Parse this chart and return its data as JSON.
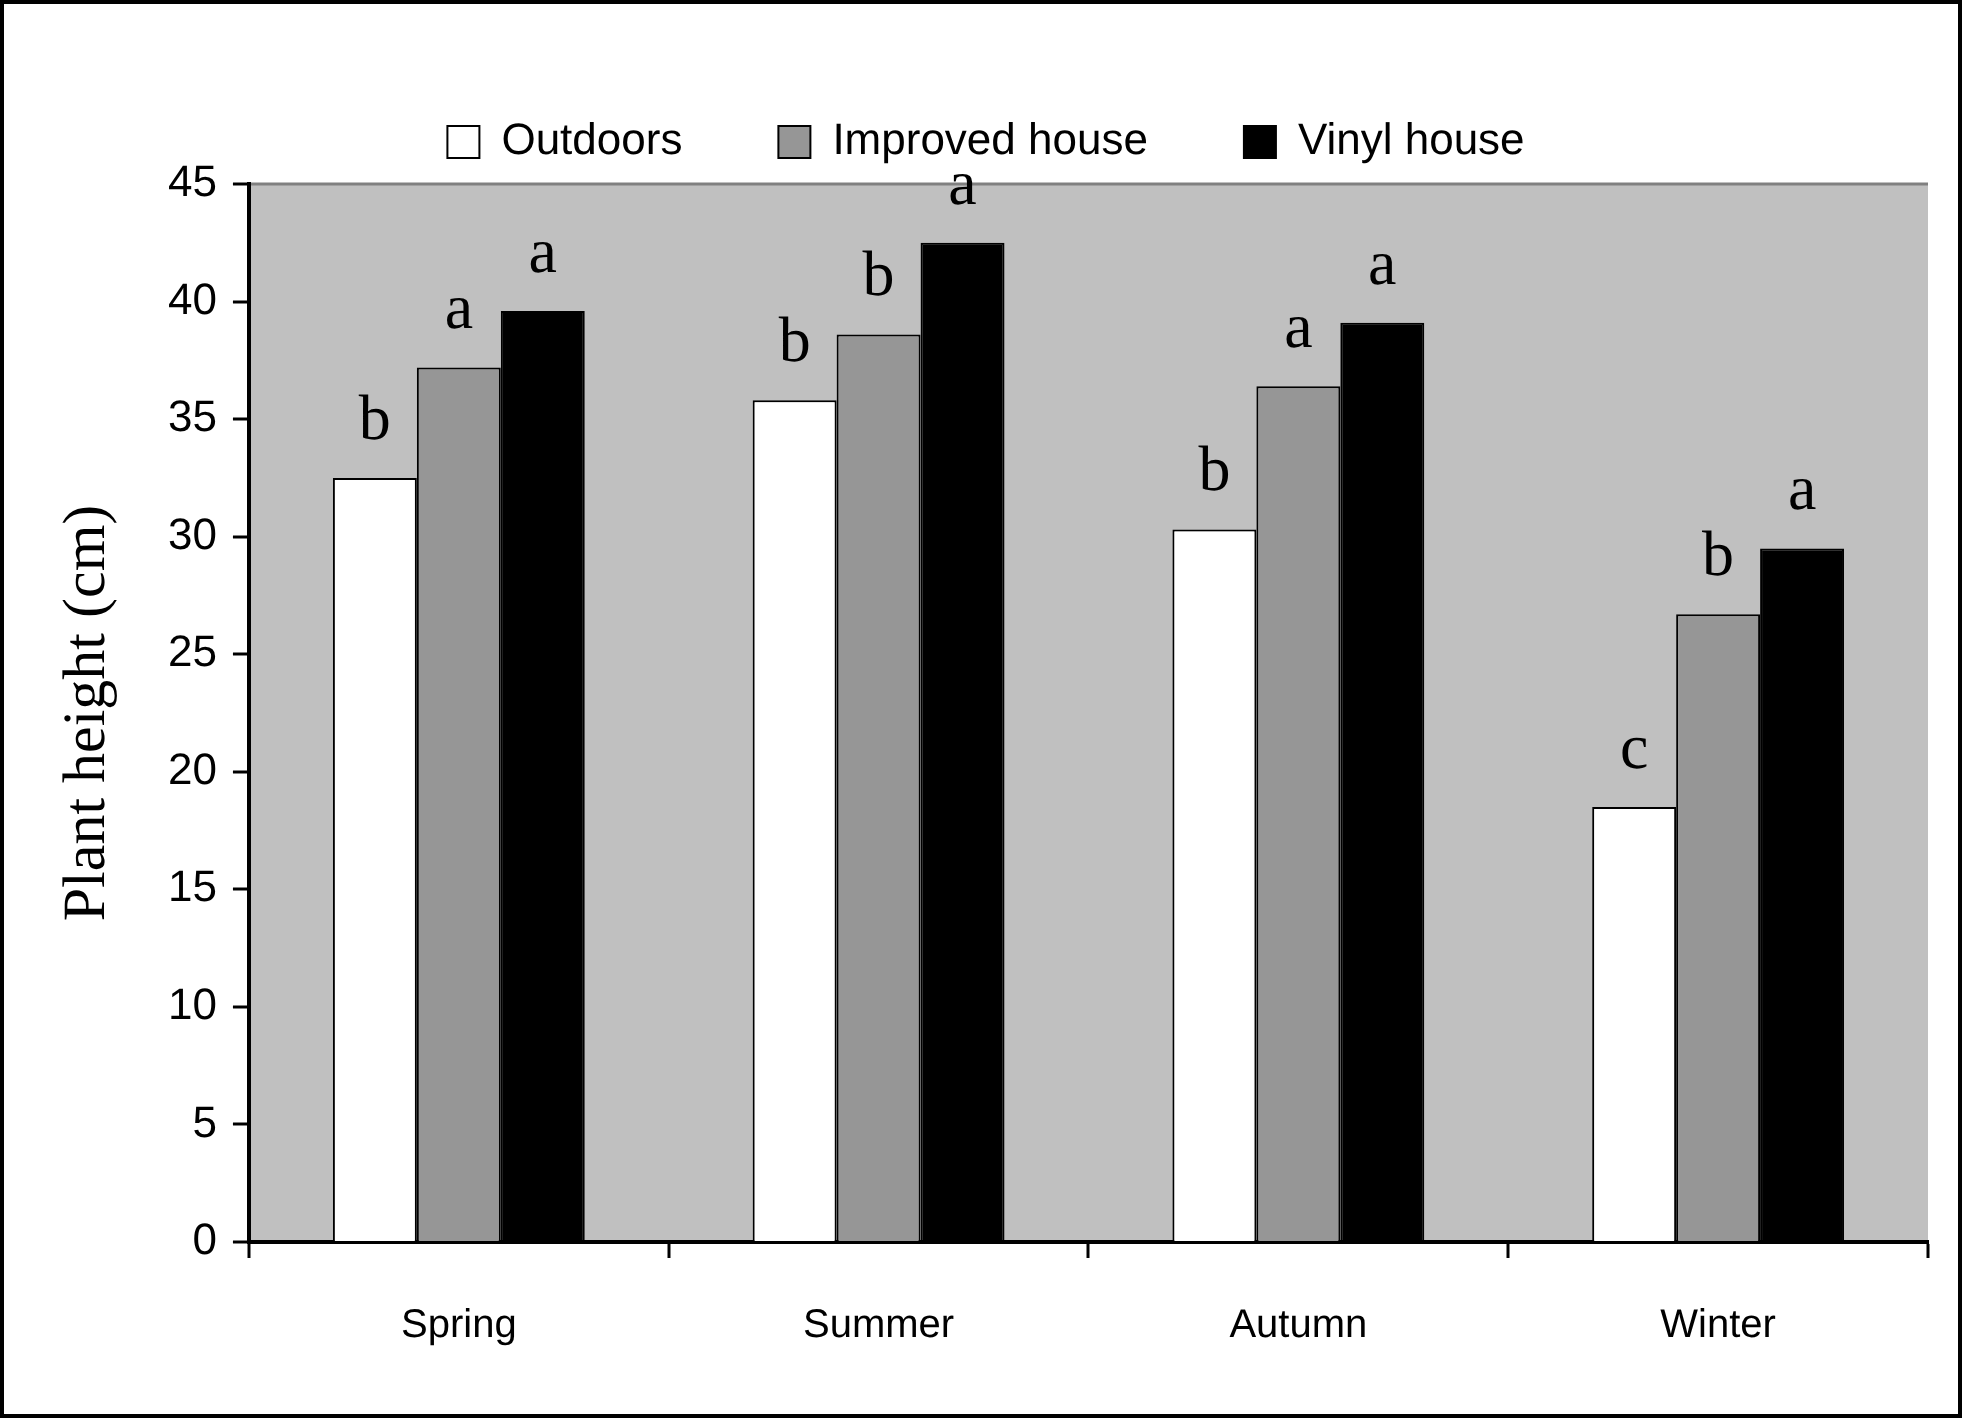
{
  "chart_data": {
    "type": "bar",
    "ylabel": "Plant height (cm)",
    "categories": [
      "Spring",
      "Summer",
      "Autumn",
      "Winter"
    ],
    "series": [
      {
        "name": "Outdoors",
        "color": "#ffffff",
        "values": [
          32.5,
          35.8,
          30.3,
          18.5
        ],
        "value_labels": [
          "b",
          "b",
          "b",
          "c"
        ]
      },
      {
        "name": "Improved house",
        "color": "#969696",
        "values": [
          37.2,
          38.6,
          36.4,
          26.7
        ],
        "value_labels": [
          "a",
          "b",
          "a",
          "b"
        ]
      },
      {
        "name": "Vinyl house",
        "color": "#000000",
        "values": [
          39.6,
          42.5,
          39.1,
          29.5
        ],
        "value_labels": [
          "a",
          "a",
          "a",
          "a"
        ]
      }
    ],
    "ylim": [
      0,
      45
    ],
    "yticks": [
      0,
      5,
      10,
      15,
      20,
      25,
      30,
      35,
      40,
      45
    ],
    "grid": false,
    "legend": "top"
  }
}
